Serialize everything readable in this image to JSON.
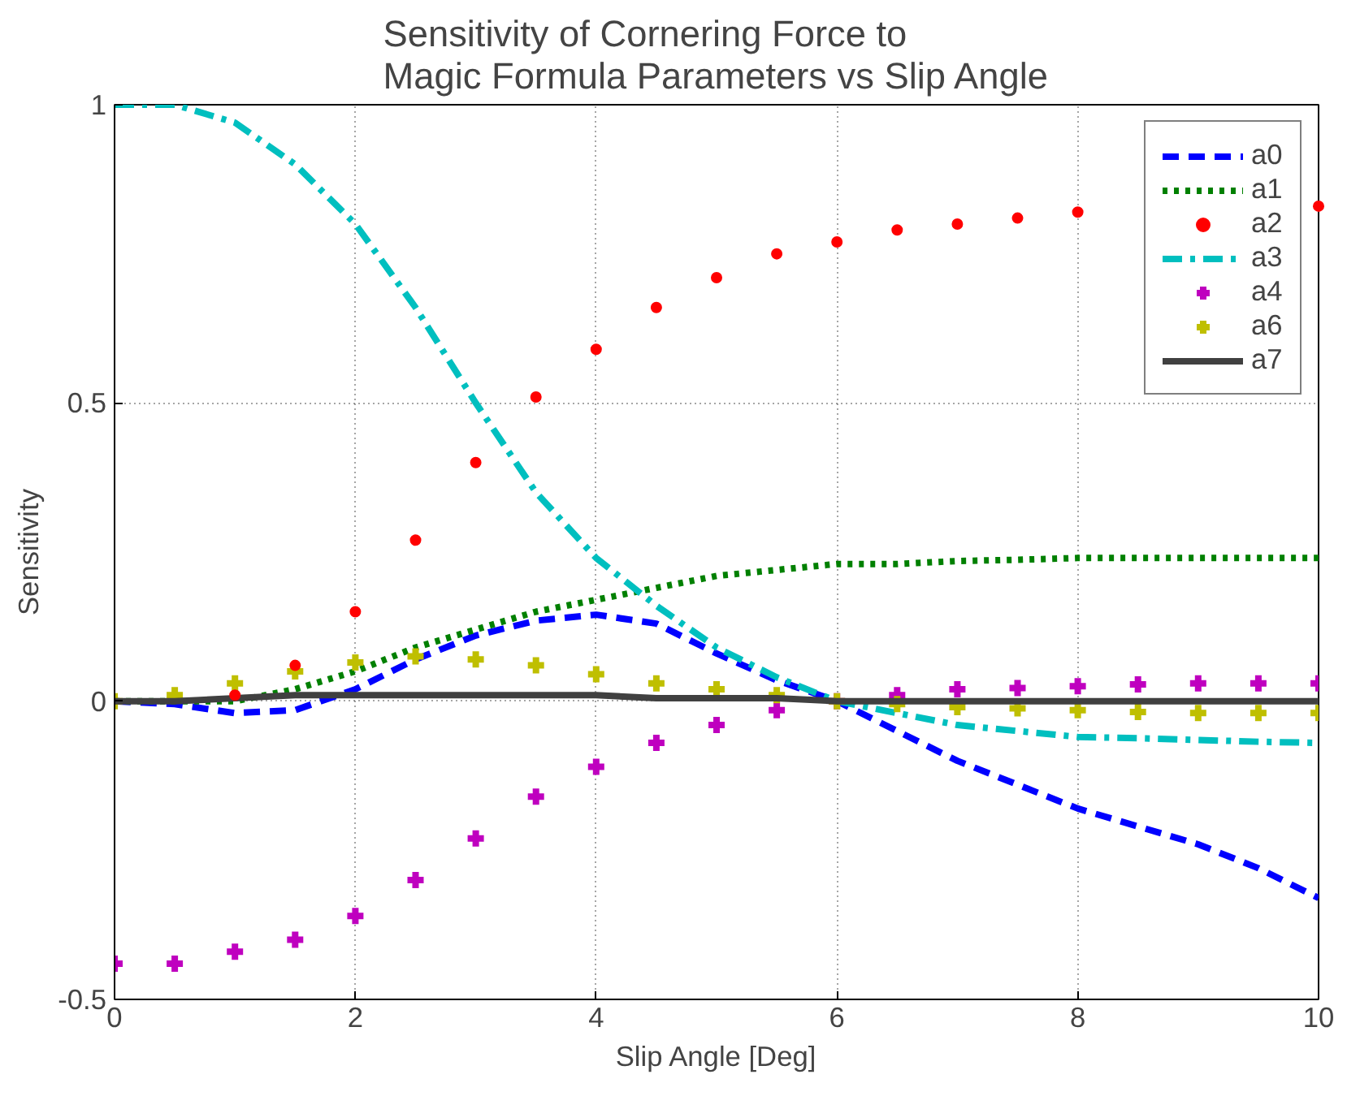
{
  "chart_data": {
    "type": "line",
    "title": "Sensitivity of Cornering Force to\nMagic Formula Parameters vs Slip Angle",
    "xlabel": "Slip Angle [Deg]",
    "ylabel": "Sensitivity",
    "x": [
      0,
      0.5,
      1,
      1.5,
      2,
      2.5,
      3,
      3.5,
      4,
      4.5,
      5,
      5.5,
      6,
      6.5,
      7,
      7.5,
      8,
      8.5,
      9,
      9.5,
      10
    ],
    "xlim": [
      0,
      10
    ],
    "xticks": [
      0,
      2,
      4,
      6,
      8,
      10
    ],
    "ylim": [
      -0.5,
      1
    ],
    "yticks": [
      {
        "value": -0.5,
        "label": "-0.5"
      },
      0,
      0.5,
      1
    ],
    "grid": true,
    "legend": "top right",
    "series": [
      {
        "name": "a0",
        "color": "#0000ff",
        "line_style": "dashed",
        "marker": "none",
        "values": [
          0,
          -0.005,
          -0.02,
          -0.015,
          0.02,
          0.07,
          0.11,
          0.135,
          0.145,
          0.13,
          0.08,
          0.035,
          0,
          -0.05,
          -0.1,
          -0.14,
          -0.18,
          -0.21,
          -0.24,
          -0.28,
          -0.33
        ]
      },
      {
        "name": "a1",
        "color": "#008000",
        "line_style": "dotted",
        "marker": "none",
        "values": [
          0,
          0,
          0,
          0.02,
          0.05,
          0.09,
          0.12,
          0.15,
          0.17,
          0.19,
          0.21,
          0.22,
          0.23,
          0.23,
          0.235,
          0.237,
          0.24,
          0.24,
          0.24,
          0.24,
          0.24
        ]
      },
      {
        "name": "a2",
        "type": "scatter",
        "color": "#ff0000",
        "marker": "circle",
        "values": [
          null,
          null,
          0.01,
          0.06,
          0.15,
          0.27,
          0.4,
          0.51,
          0.59,
          0.66,
          0.71,
          0.75,
          0.77,
          0.79,
          0.8,
          0.81,
          0.82,
          null,
          null,
          null,
          0.83
        ]
      },
      {
        "name": "a3",
        "color": "#00bfbf",
        "line_style": "dashdot",
        "marker": "none",
        "values": [
          1,
          1,
          0.97,
          0.9,
          0.8,
          0.66,
          0.5,
          0.35,
          0.24,
          0.16,
          0.09,
          0.04,
          0,
          -0.02,
          -0.04,
          -0.05,
          -0.06,
          -0.062,
          -0.065,
          -0.068,
          -0.07
        ]
      },
      {
        "name": "a4",
        "type": "scatter",
        "color": "#bf00bf",
        "marker": "cross",
        "values": [
          -0.44,
          -0.44,
          -0.42,
          -0.4,
          -0.36,
          -0.3,
          -0.23,
          -0.16,
          -0.11,
          -0.07,
          -0.04,
          -0.015,
          0,
          0.01,
          0.02,
          0.022,
          0.025,
          0.028,
          0.03,
          0.03,
          0.03
        ]
      },
      {
        "name": "a6",
        "type": "scatter",
        "color": "#bfbf00",
        "marker": "cross",
        "values": [
          0,
          0.01,
          0.03,
          0.05,
          0.065,
          0.075,
          0.07,
          0.06,
          0.045,
          0.03,
          0.02,
          0.01,
          0,
          -0.005,
          -0.01,
          -0.012,
          -0.015,
          -0.018,
          -0.02,
          -0.02,
          -0.02
        ]
      },
      {
        "name": "a7",
        "color": "#404040",
        "line_style": "solid",
        "marker": "none",
        "values": [
          0,
          0,
          0.005,
          0.01,
          0.01,
          0.01,
          0.01,
          0.01,
          0.01,
          0.005,
          0.005,
          0.005,
          0,
          0,
          0,
          0,
          0,
          0,
          0,
          0,
          0
        ]
      }
    ]
  }
}
